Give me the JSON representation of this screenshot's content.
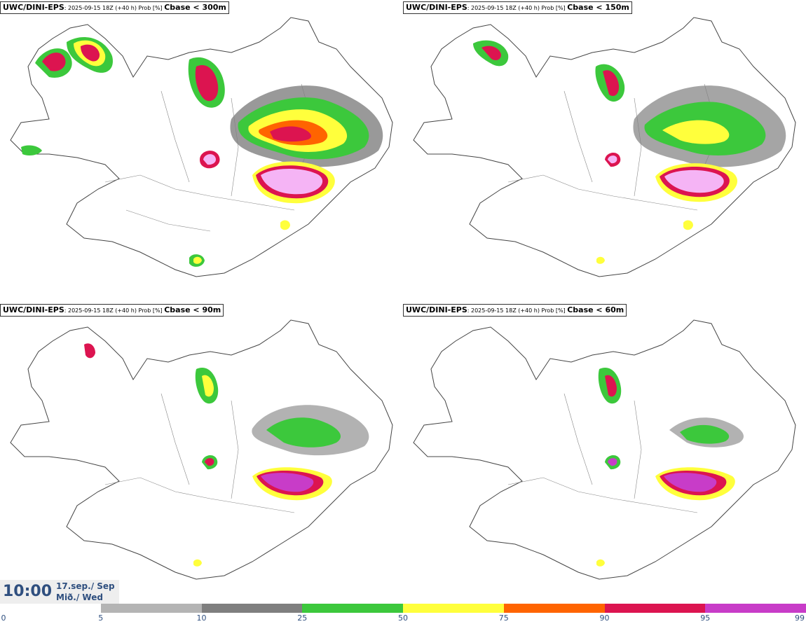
{
  "panels": [
    {
      "source": "UWC/DINI-EPS",
      "run": ": 2025-09-15 18Z (+40 h) Prob [%] ",
      "threshold": "Cbase < 300m"
    },
    {
      "source": "UWC/DINI-EPS",
      "run": ": 2025-09-15 18Z (+40 h) Prob [%] ",
      "threshold": "Cbase < 150m"
    },
    {
      "source": "UWC/DINI-EPS",
      "run": ": 2025-09-15 18Z (+40 h) Prob [%] ",
      "threshold": "Cbase < 90m"
    },
    {
      "source": "UWC/DINI-EPS",
      "run": ": 2025-09-15 18Z (+40 h) Prob [%] ",
      "threshold": "Cbase < 60m"
    }
  ],
  "valid": {
    "time": "10:00",
    "date": "17.sep./ Sep",
    "day": "Mið./ Wed"
  },
  "colorbar": {
    "ticks": [
      "0",
      "5",
      "10",
      "25",
      "50",
      "75",
      "90",
      "95",
      "99"
    ],
    "colors": [
      "#ffffff",
      "#b4b4b4",
      "#7f7f7f",
      "#3cc83c",
      "#ffff3c",
      "#ff6400",
      "#dc1450",
      "#c83cc8",
      "#f5b4f5"
    ]
  }
}
